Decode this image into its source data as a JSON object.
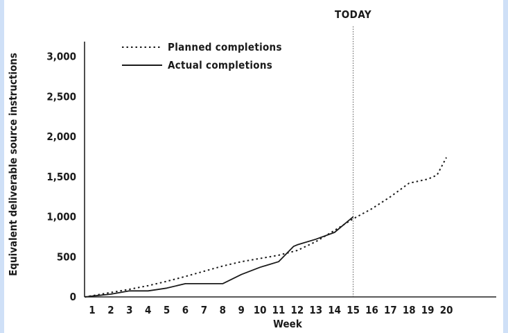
{
  "chart_data": {
    "type": "line",
    "xlabel": "Week",
    "ylabel": "Equivalent deliverable source instructions",
    "x": [
      1,
      2,
      3,
      4,
      5,
      6,
      7,
      8,
      9,
      10,
      11,
      12,
      13,
      14,
      15,
      16,
      17,
      18,
      19,
      20
    ],
    "ylim": [
      0,
      3000
    ],
    "yticks": [
      0,
      500,
      1000,
      1500,
      2000,
      2500,
      3000
    ],
    "ytick_labels": [
      "0",
      "500",
      "1,000",
      "1,500",
      "2,000",
      "2,500",
      "3,000"
    ],
    "series": [
      {
        "name": "Planned completions",
        "style": "dotted",
        "points": [
          [
            0.6,
            0
          ],
          [
            1,
            15
          ],
          [
            2,
            55
          ],
          [
            3,
            95
          ],
          [
            4,
            140
          ],
          [
            5,
            195
          ],
          [
            6,
            255
          ],
          [
            7,
            320
          ],
          [
            8,
            385
          ],
          [
            9,
            440
          ],
          [
            10,
            480
          ],
          [
            11,
            520
          ],
          [
            12,
            580
          ],
          [
            13,
            690
          ],
          [
            14,
            830
          ],
          [
            15,
            975
          ],
          [
            16,
            1100
          ],
          [
            17,
            1250
          ],
          [
            18,
            1420
          ],
          [
            19,
            1470
          ],
          [
            19.5,
            1520
          ],
          [
            20,
            1740
          ]
        ]
      },
      {
        "name": "Actual completions",
        "style": "solid",
        "points": [
          [
            0.6,
            0
          ],
          [
            1,
            10
          ],
          [
            2,
            35
          ],
          [
            3,
            75
          ],
          [
            3.5,
            75
          ],
          [
            4,
            75
          ],
          [
            5,
            110
          ],
          [
            6,
            165
          ],
          [
            7,
            165
          ],
          [
            8,
            165
          ],
          [
            9,
            280
          ],
          [
            10,
            370
          ],
          [
            11,
            440
          ],
          [
            11.8,
            630
          ],
          [
            12,
            650
          ],
          [
            13,
            720
          ],
          [
            14,
            805
          ],
          [
            15,
            1000
          ]
        ]
      }
    ],
    "annotations": [
      {
        "label": "TODAY",
        "x": 15
      }
    ],
    "legend_position": "top-left",
    "grid": false
  }
}
